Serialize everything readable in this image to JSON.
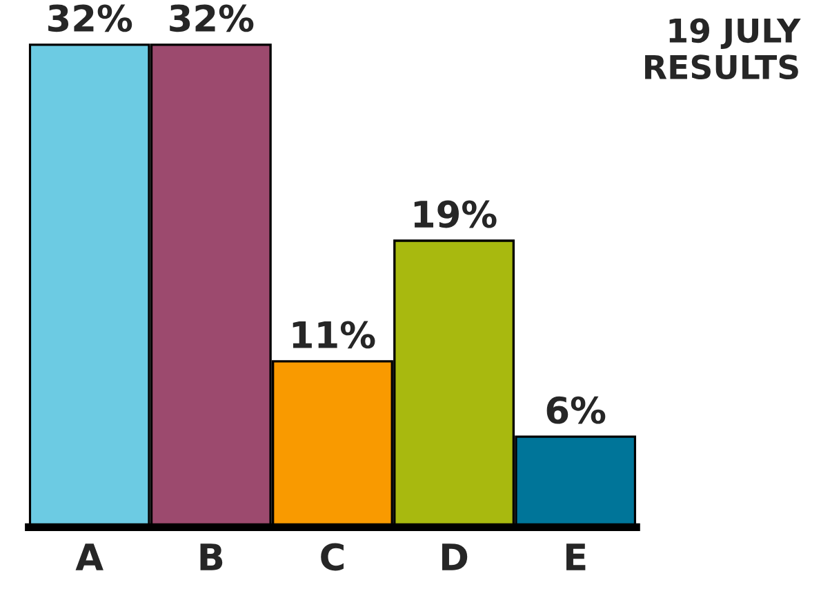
{
  "chart_data": {
    "type": "bar",
    "title": "19 JULY\nRESULTS",
    "categories": [
      "A",
      "B",
      "C",
      "D",
      "E"
    ],
    "values": [
      32,
      32,
      11,
      19,
      6
    ],
    "value_labels": [
      "32%",
      "32%",
      "11%",
      "19%",
      "6%"
    ],
    "colors": [
      "#6ccbe3",
      "#9c4a6e",
      "#f99a00",
      "#a8b90f",
      "#007599"
    ],
    "grid": false,
    "legend": false
  }
}
